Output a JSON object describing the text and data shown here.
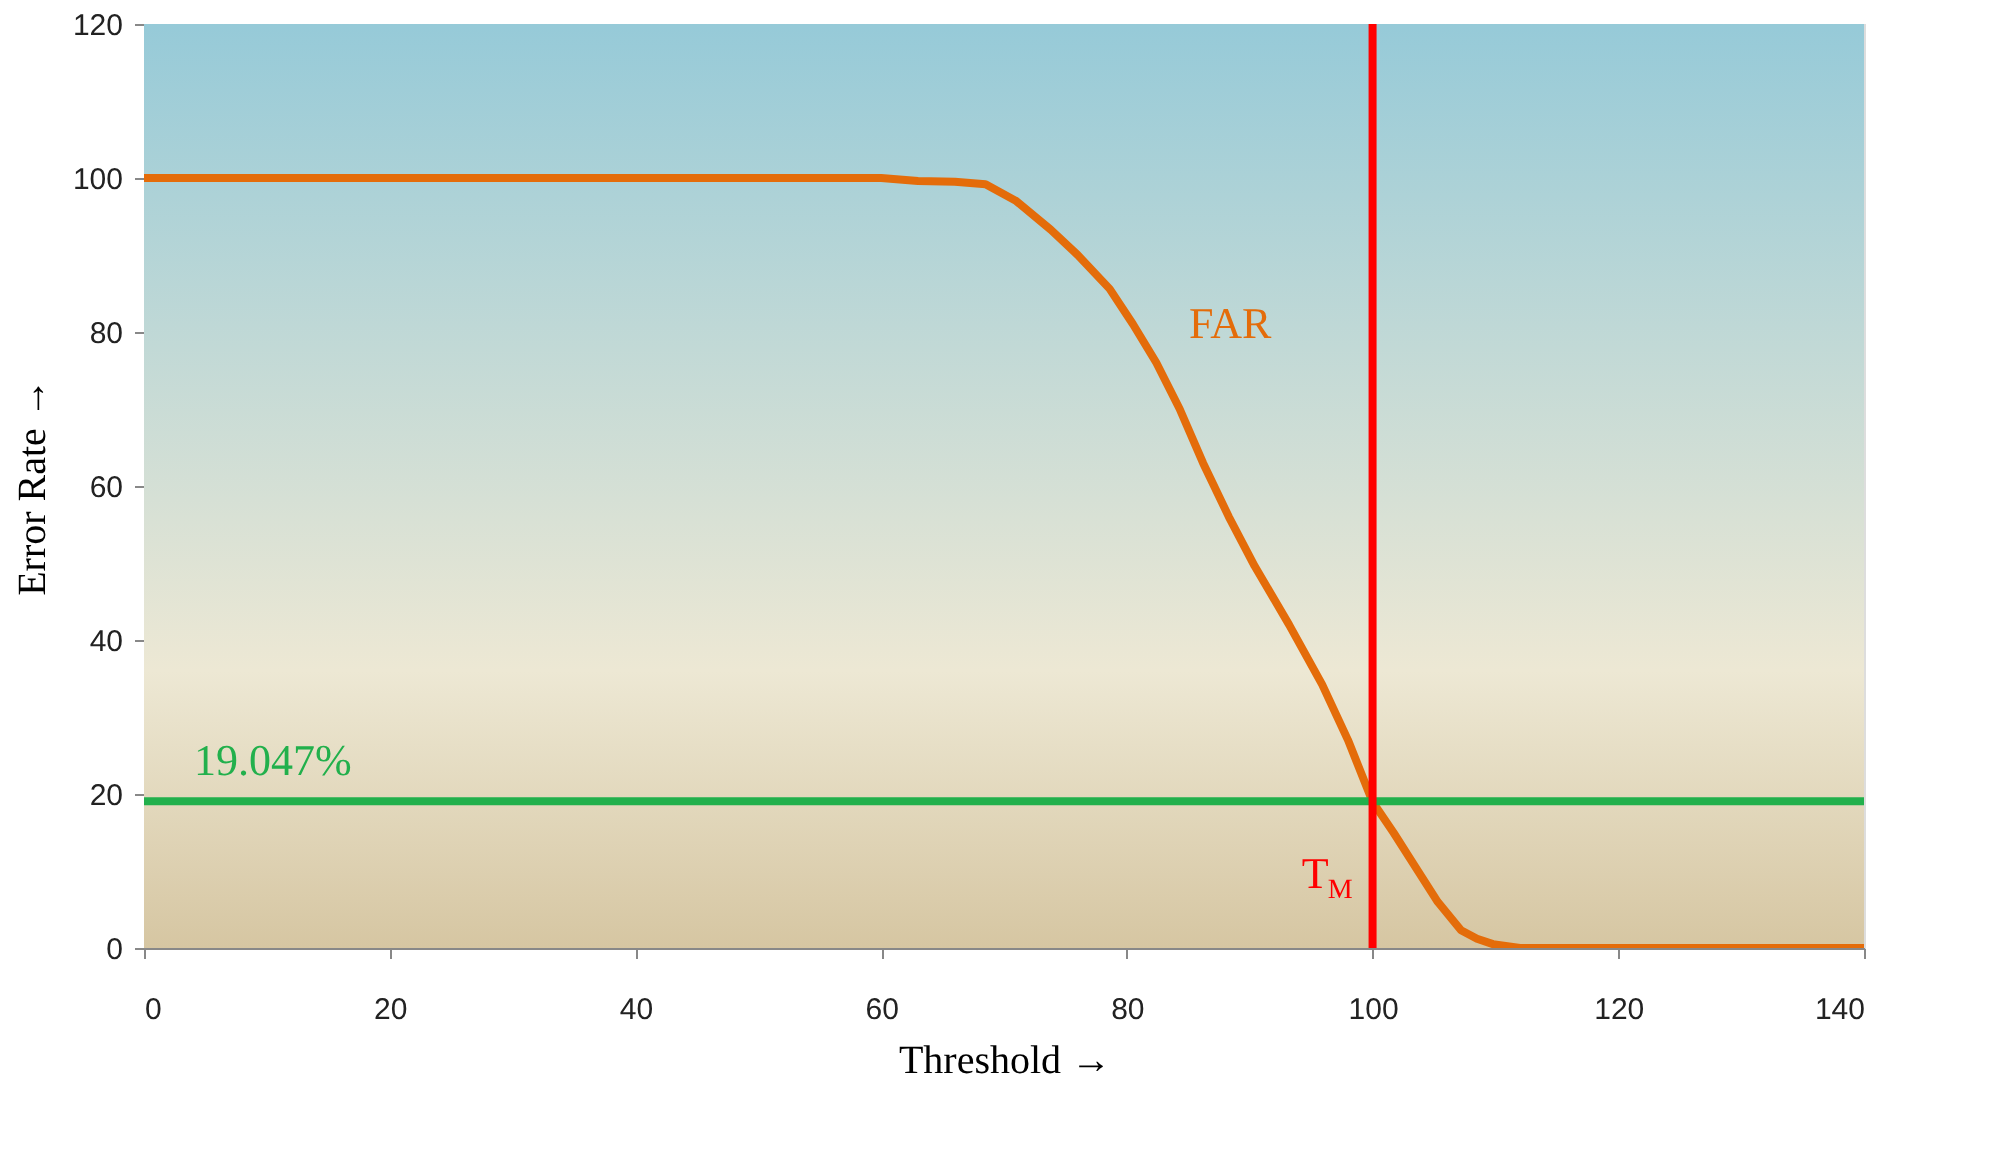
{
  "chart_data": {
    "type": "line",
    "xlabel": "Threshold →",
    "ylabel": "Error Rate →",
    "x": [
      0,
      20,
      40,
      56,
      60,
      63,
      66,
      68.5,
      71,
      73.8,
      76,
      78.6,
      80.5,
      82.4,
      84.3,
      86.2,
      88.3,
      90.4,
      93.2,
      95.9,
      98,
      100,
      101.7,
      103.3,
      105.3,
      107.2,
      108.5,
      109.8,
      112,
      120,
      140
    ],
    "series": [
      {
        "name": "FAR",
        "color": "#e46c0a",
        "values": [
          100,
          100,
          100,
          100,
          100,
          99.6,
          99.5,
          99.2,
          97,
          93.3,
          90,
          85.6,
          81,
          76,
          70,
          63,
          56,
          49.6,
          42,
          34.2,
          27,
          19,
          15,
          11,
          6,
          2.3,
          1.2,
          0.5,
          0,
          0,
          0
        ]
      }
    ],
    "xlim": [
      0,
      140
    ],
    "xticks": [
      0,
      20,
      40,
      60,
      80,
      100,
      120,
      140
    ],
    "ylim": [
      0,
      120
    ],
    "yticks": [
      0,
      20,
      40,
      60,
      80,
      100,
      120
    ],
    "marker": "none",
    "line_style": "solid",
    "ref_lines": [
      {
        "axis": "y",
        "value": 19.047,
        "label": "19.047%",
        "color": "#22b04c"
      },
      {
        "axis": "x",
        "value": 100,
        "label": "T$_{M}$",
        "color": "#ff0000"
      }
    ]
  }
}
